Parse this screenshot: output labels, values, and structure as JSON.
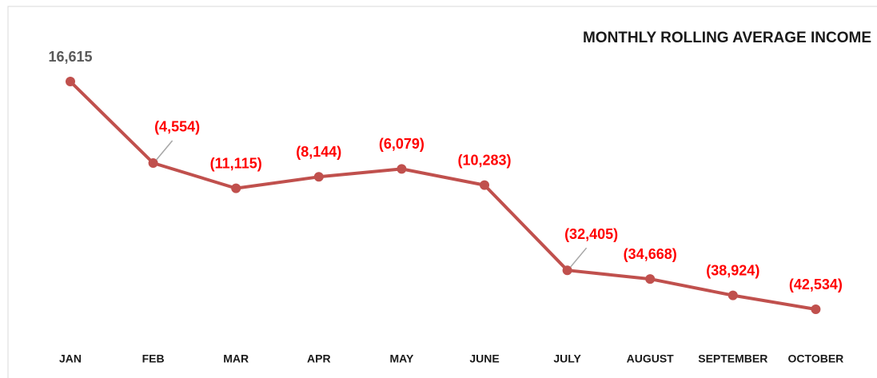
{
  "chart_data": {
    "type": "line",
    "title": "MONTHLY ROLLING AVERAGE INCOME",
    "categories": [
      "JAN",
      "FEB",
      "MAR",
      "APR",
      "MAY",
      "JUNE",
      "JULY",
      "AUGUST",
      "SEPTEMBER",
      "OCTOBER"
    ],
    "series": [
      {
        "name": "Rolling Average Income",
        "color": "#c0504d",
        "values": [
          16615,
          -4554,
          -11115,
          -8144,
          -6079,
          -10283,
          -32405,
          -34668,
          -38924,
          -42534
        ],
        "value_labels": [
          "16,615",
          "(4,554)",
          "(11,115)",
          "(8,144)",
          "(6,079)",
          "(10,283)",
          "(32,405)",
          "(34,668)",
          "(38,924)",
          "(42,534)"
        ]
      }
    ]
  }
}
